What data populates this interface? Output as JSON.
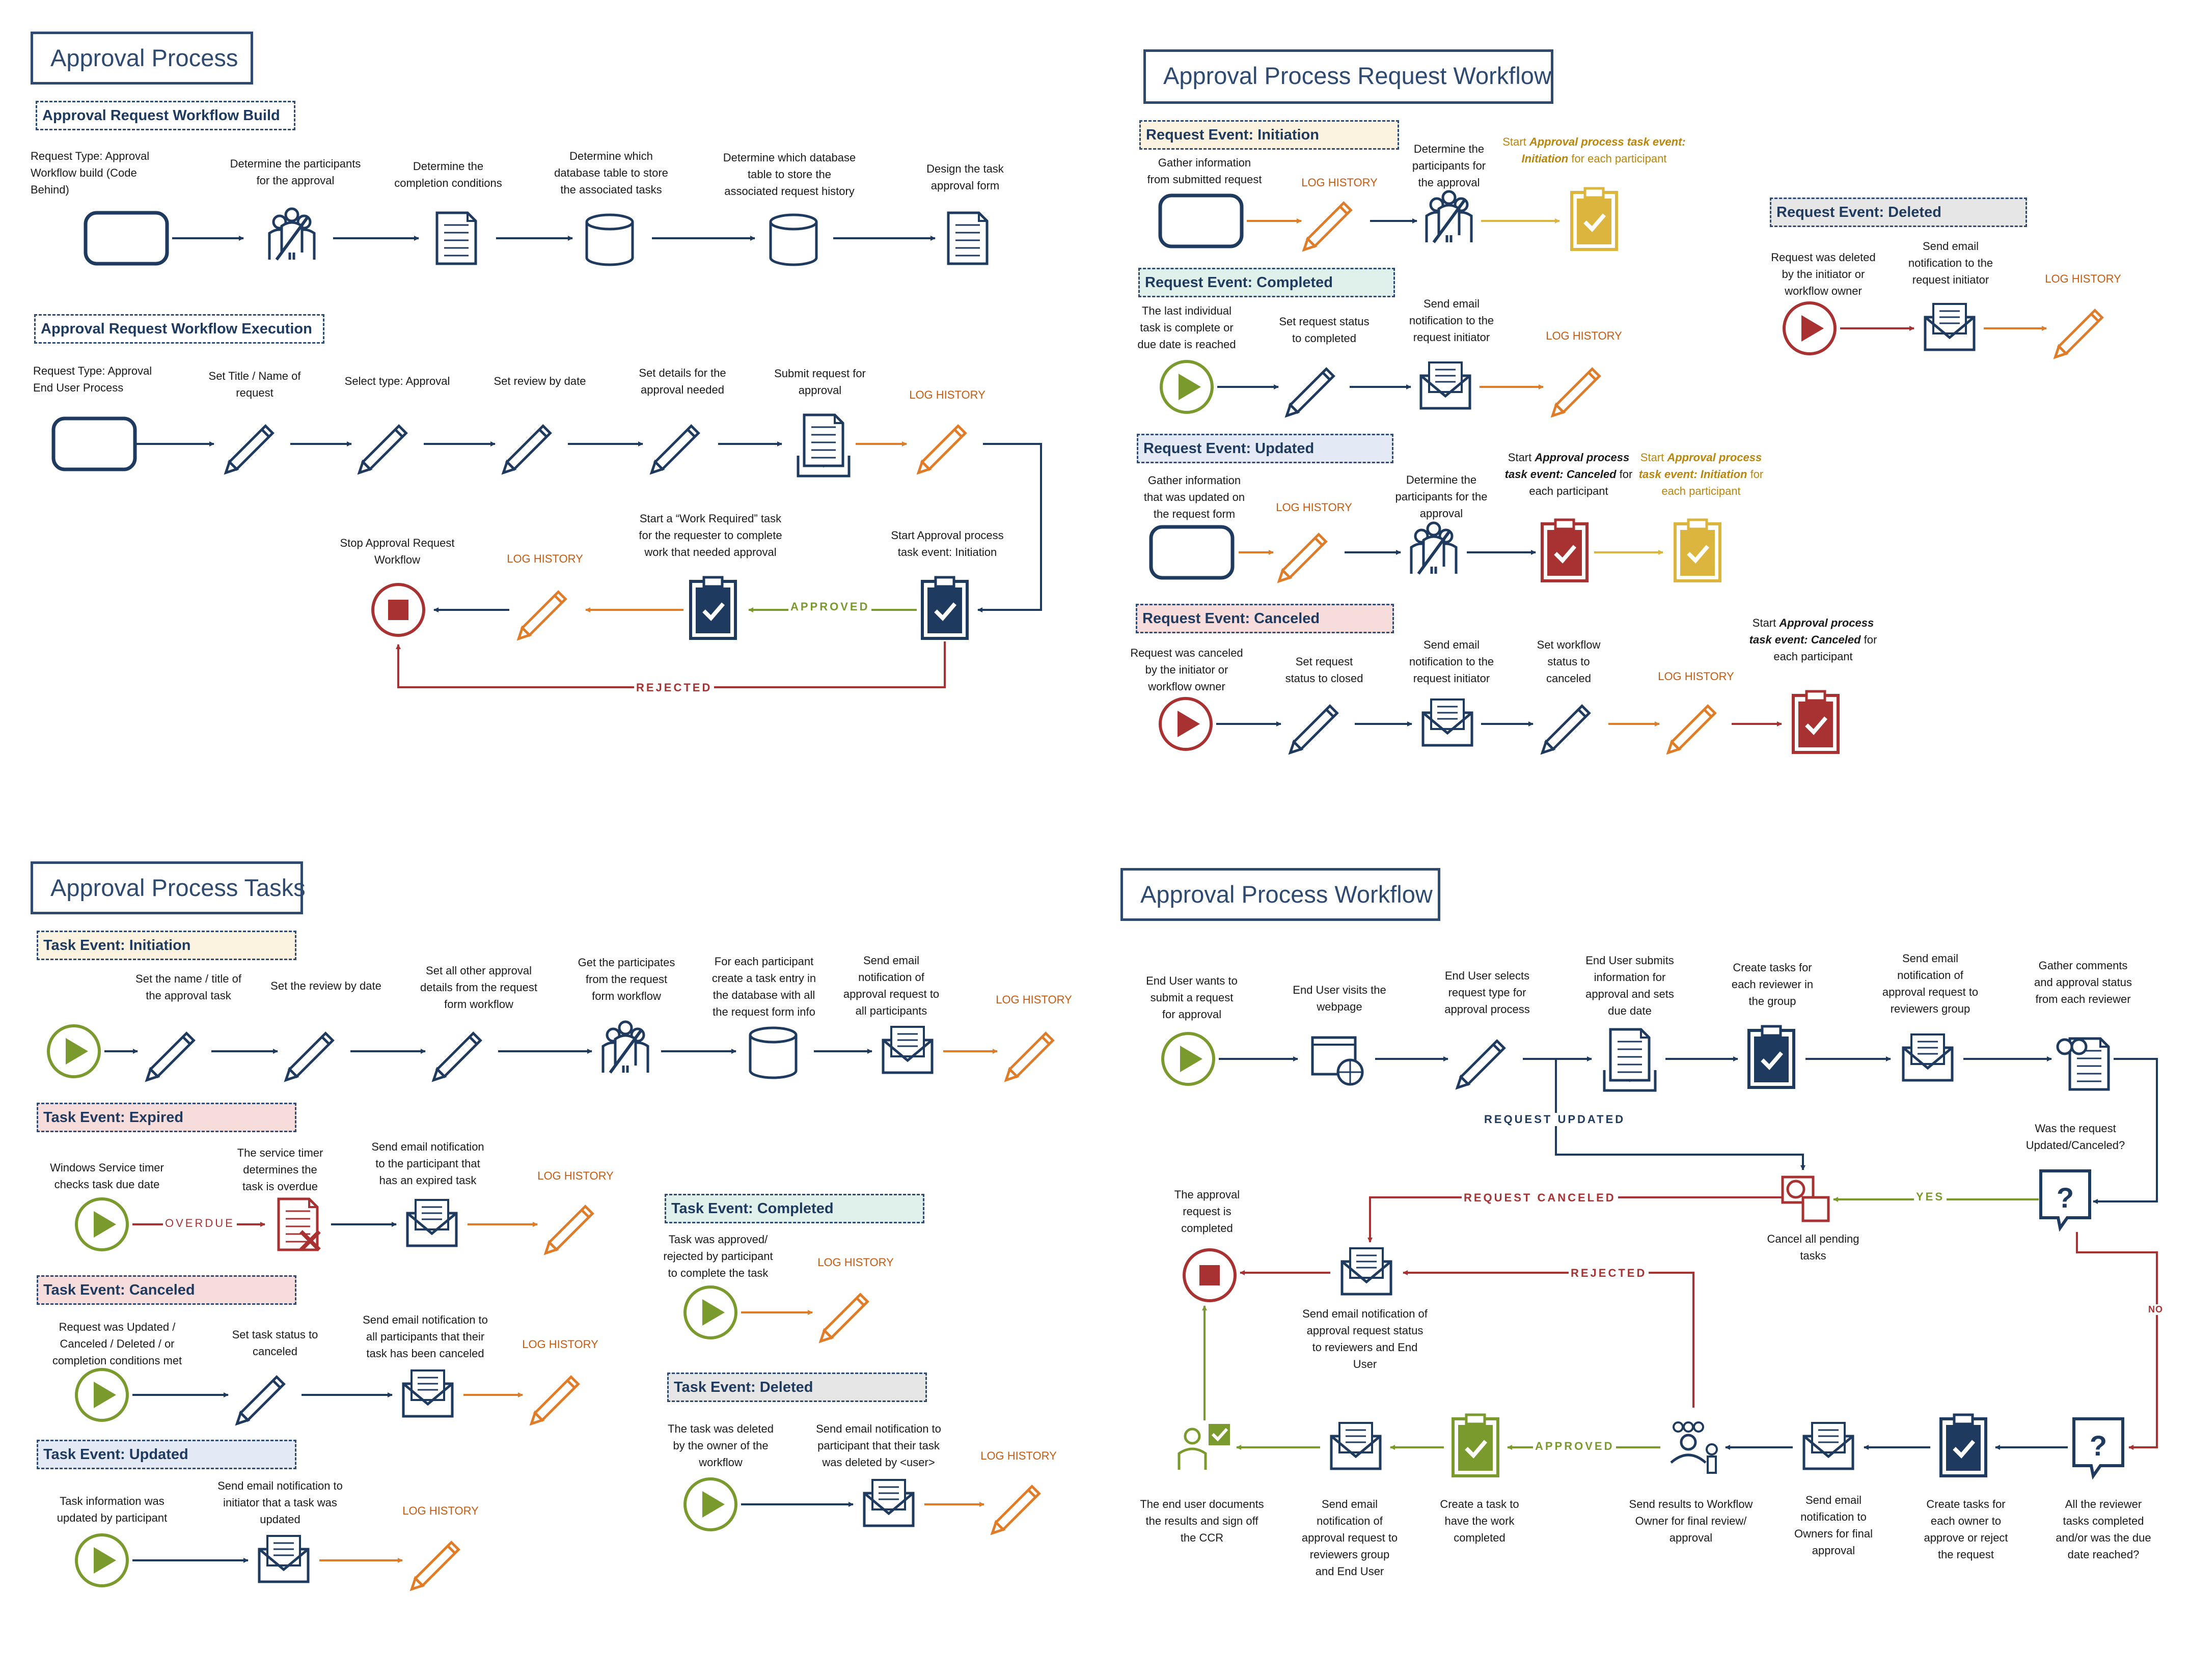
{
  "colors": {
    "navy": "#1f3a5f",
    "orange": "#e07b28",
    "red": "#a83232",
    "green": "#7a9a2e",
    "yellow": "#dcb53e",
    "gray": "#e6e6e6"
  },
  "q1": {
    "title": "Approval Process",
    "build": {
      "title": "Approval Request Workflow Build",
      "labels": [
        "Request Type: Approval\nWorkflow build (Code\nBehind)",
        "Determine the participants\nfor the approval",
        "Determine the\ncompletion conditions",
        "Determine which\ndatabase table to store\nthe associated tasks",
        "Determine which database\ntable to store the\nassociated request history",
        "Design the task\napproval form"
      ]
    },
    "exec": {
      "title": "Approval Request Workflow Execution",
      "labels": [
        "Request Type: Approval\nEnd User Process",
        "Set Title / Name of\nrequest",
        "Select type: Approval",
        "Set review by date",
        "Set details for the\napproval needed",
        "Submit request for\napproval"
      ],
      "log": "LOG HISTORY",
      "start": "Start Approval process\ntask event: Initiation",
      "workreq": "Start a “Work Required” task\nfor the requester to complete\nwork that needed approval",
      "log2": "LOG HISTORY",
      "stop": "Stop Approval Request\nWorkflow",
      "approved": "APPROVED",
      "rejected": "REJECTED"
    }
  },
  "q2": {
    "title": "Approval Process Request Workflow",
    "init": {
      "title": "Request Event: Initiation",
      "gather": "Gather information\nfrom submitted request",
      "log": "LOG HISTORY",
      "determine": "Determine the\nparticipants for\nthe approval",
      "start_pre": "Start ",
      "start_em": "Approval process\ntask event: Initiation",
      "start_post": " for\neach participant"
    },
    "completed": {
      "title": "Request Event: Completed",
      "last": "The last individual\ntask is complete or\ndue date is reached",
      "set": "Set request status\nto completed",
      "email": "Send email\nnotification to the\nrequest initiator",
      "log": "LOG HISTORY"
    },
    "updated": {
      "title": "Request Event: Updated",
      "gather": "Gather information\nthat was updated on\nthe request form",
      "log": "LOG HISTORY",
      "determine": "Determine the\nparticipants for the\napproval",
      "c_pre": "Start ",
      "c_em": "Approval\nprocess task event:\nCanceled",
      "c_post": " for each\nparticipant",
      "i_pre": "Start ",
      "i_em": "Approval\nprocess task event:\nInitiation",
      "i_post": " for each\nparticipant"
    },
    "canceled": {
      "title": "Request Event: Canceled",
      "req": "Request was canceled\nby the initiator or\nworkflow owner",
      "set": "Set request\nstatus to closed",
      "email": "Send email\nnotification to the\nrequest initiator",
      "wf": "Set workflow\nstatus to\ncanceled",
      "log": "LOG HISTORY",
      "c_pre": "Start ",
      "c_em": "Approval\nprocess task event:\nCanceled",
      "c_post": " for each\nparticipant"
    },
    "deleted": {
      "title": "Request Event: Deleted",
      "req": "Request was deleted\nby the initiator or\nworkflow owner",
      "email": "Send email\nnotification to the\nrequest initiator",
      "log": "LOG HISTORY"
    }
  },
  "q3": {
    "title": "Approval Process Tasks",
    "init": {
      "title": "Task Event: Initiation",
      "labels": [
        "Set the name / title of\nthe approval task",
        "Set the review by date",
        "Set all other approval\ndetails from the request\nform workflow",
        "Get the participates\nfrom the request\nform workflow",
        "For each participant\ncreate a task entry in\nthe database with all\nthe request form info",
        "Send email\nnotification of\napproval request to\nall participants"
      ],
      "log": "LOG HISTORY"
    },
    "expired": {
      "title": "Task Event: Expired",
      "win": "Windows Service timer\nchecks task due date",
      "overdue": "OVERDUE",
      "timer": "The service timer\ndetermines the\ntask is overdue",
      "email": "Send email notification\nto the participant that\nhas an expired task",
      "log": "LOG HISTORY"
    },
    "canceled": {
      "title": "Task Event: Canceled",
      "req": "Request was Updated /\nCanceled / Deleted / or\ncompletion conditions met",
      "set": "Set task status to\ncanceled",
      "email": "Send email notification to\nall participants that their\ntask has been canceled",
      "log": "LOG HISTORY"
    },
    "updated": {
      "title": "Task Event: Updated",
      "info": "Task information was\nupdated by participant",
      "email": "Send email notification to\ninitiator that a task was\nupdated",
      "log": "LOG HISTORY"
    },
    "completed": {
      "title": "Task Event: Completed",
      "text": "Task was approved/\nrejected by participant\nto complete the task",
      "log": "LOG HISTORY"
    },
    "deleted": {
      "title": "Task Event: Deleted",
      "text": "The task was deleted\nby the owner of the\nworkflow",
      "email": "Send email notification to\nparticipant that their task\nwas deleted by <user>",
      "log": "LOG HISTORY"
    }
  },
  "q4": {
    "title": "Approval Process Workflow",
    "top": [
      "End User wants to\nsubmit a request\nfor approval",
      "End User visits the\nwebpage",
      "End User selects\nrequest type for\napproval process",
      "End User submits\ninformation for\napproval and sets\ndue date",
      "Create tasks for\neach reviewer in\nthe group",
      "Send email\nnotification of\napproval request to\nreviewers group",
      "Gather comments\nand approval status\nfrom each reviewer"
    ],
    "req_updated": "REQUEST UPDATED",
    "was_req": "Was the request\nUpdated/Canceled?",
    "yes": "YES",
    "no": "NO",
    "cancel_pending": "Cancel all pending\ntasks",
    "req_canceled": "REQUEST CANCELED",
    "completed": "The approval\nrequest is\ncompleted",
    "email_status": "Send email notification of\napproval request status\nto reviewers and End\nUser",
    "rejected": "REJECTED",
    "approved": "APPROVED",
    "bottom": [
      "The end user documents\nthe results and sign off\nthe CCR",
      "Send email\nnotification of\napproval request to\nreviewers group\nand End User",
      "Create a task to\nhave the work\ncompleted",
      "Send results to Workflow\nOwner for final review/\napproval",
      "Send email\nnotification to\nOwners for final\napproval",
      "Create tasks for\neach owner to\napprove or reject\nthe request",
      "All the reviewer\ntasks completed\nand/or was the due\ndate reached?"
    ]
  }
}
